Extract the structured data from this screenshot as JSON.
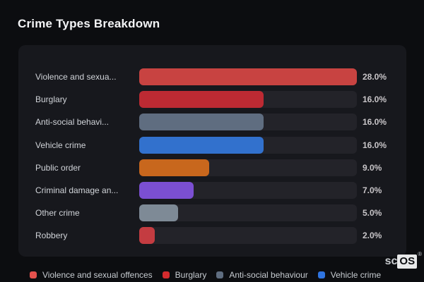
{
  "title": "Crime Types Breakdown",
  "colors": {
    "page_bg": "#0c0d10",
    "panel_bg": "#17181d",
    "track_bg": "#232329",
    "label_text": "#d0d3d8",
    "value_text": "#c8c5c8",
    "title_text": "#f3f4f6",
    "legend_text": "#c7ccd1"
  },
  "chart_data": {
    "type": "bar",
    "orientation": "horizontal",
    "title": "Crime Types Breakdown",
    "categories": [
      "Violence and sexua...",
      "Burglary",
      "Anti-social behavi...",
      "Vehicle crime",
      "Public order",
      "Criminal damage an...",
      "Other crime",
      "Robbery"
    ],
    "values": [
      28.0,
      16.0,
      16.0,
      16.0,
      9.0,
      7.0,
      5.0,
      2.0
    ],
    "value_labels": [
      "28.0%",
      "16.0%",
      "16.0%",
      "16.0%",
      "9.0%",
      "7.0%",
      "5.0%",
      "2.0%"
    ],
    "bar_colors": [
      "#c84341",
      "#bd2a33",
      "#5f6d80",
      "#3271cd",
      "#c8671d",
      "#7b4fd2",
      "#7e8a96",
      "#c43c41"
    ],
    "xlim": [
      0,
      28
    ],
    "grid": false,
    "legend_position": "bottom",
    "legend": [
      {
        "label": "Violence and sexual offences",
        "color": "#e4514d"
      },
      {
        "label": "Burglary",
        "color": "#d32b2e"
      },
      {
        "label": "Anti-social behaviour",
        "color": "#5f6d80"
      },
      {
        "label": "Vehicle crime",
        "color": "#2f74e0"
      }
    ]
  },
  "footer": {
    "logo_prefix": "sc",
    "logo_suffix": "OS",
    "logo_registered": "®"
  }
}
